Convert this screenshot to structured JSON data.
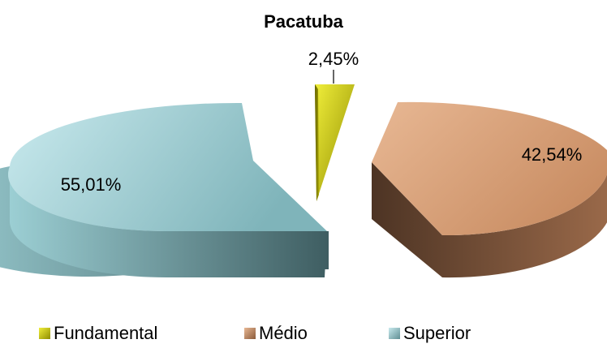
{
  "chart_data": {
    "type": "pie",
    "title": "Pacatuba",
    "three_d": true,
    "exploded": true,
    "legend_position": "bottom",
    "slices": [
      {
        "name": "Fundamental",
        "value": 2.45,
        "label": "2,45%",
        "color": "#c7c400"
      },
      {
        "name": "Médio",
        "value": 42.54,
        "label": "42,54%",
        "color": "#d9a27b"
      },
      {
        "name": "Superior",
        "value": 55.01,
        "label": "55,01%",
        "color": "#a6d8dc"
      }
    ]
  }
}
